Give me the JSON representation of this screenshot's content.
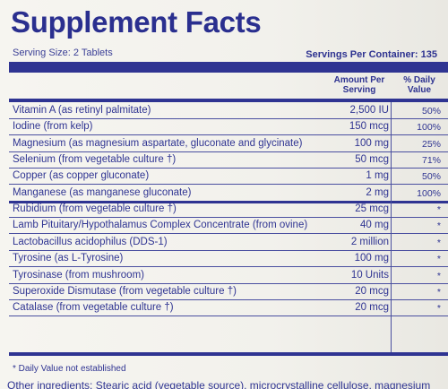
{
  "title": "Supplement Facts",
  "serving_size": "Serving Size: 2 Tablets",
  "servings_per_container": "Servings Per Container: 135",
  "column_headers": {
    "amount_line1": "Amount Per",
    "amount_line2": "Serving",
    "dv_line1": "% Daily",
    "dv_line2": "Value"
  },
  "rows": [
    {
      "name": "Vitamin A (as retinyl palmitate)",
      "amount": "2,500 IU",
      "dv": "50%"
    },
    {
      "name": "Iodine (from kelp)",
      "amount": "150 mcg",
      "dv": "100%"
    },
    {
      "name": "Magnesium (as magnesium aspartate, gluconate and glycinate)",
      "amount": "100 mg",
      "dv": "25%"
    },
    {
      "name": "Selenium (from vegetable culture †)",
      "amount": "50 mcg",
      "dv": "71%"
    },
    {
      "name": "Copper (as copper gluconate)",
      "amount": "1 mg",
      "dv": "50%"
    },
    {
      "name": "Manganese (as manganese gluconate)",
      "amount": "2 mg",
      "dv": "100%"
    },
    {
      "name": "Rubidium (from vegetable culture †)",
      "amount": "25 mcg",
      "dv": "*"
    },
    {
      "name": "Lamb Pituitary/Hypothalamus Complex Concentrate (from ovine)",
      "amount": "40 mg",
      "dv": "*"
    },
    {
      "name": "Lactobacillus acidophilus (DDS-1)",
      "amount": "2 million",
      "dv": "*"
    },
    {
      "name": "Tyrosine (as L-Tyrosine)",
      "amount": "100 mg",
      "dv": "*"
    },
    {
      "name": "Tyrosinase (from mushroom)",
      "amount": "10 Units",
      "dv": "*"
    },
    {
      "name": "Superoxide Dismutase (from vegetable culture †)",
      "amount": "20 mcg",
      "dv": "*"
    },
    {
      "name": "Catalase (from vegetable culture †)",
      "amount": "20 mcg",
      "dv": "*"
    }
  ],
  "footnote": "* Daily Value not established",
  "other_ingredients": "Other ingredients: Stearic acid (vegetable source), microcrystalline cellulose, magnesium"
}
